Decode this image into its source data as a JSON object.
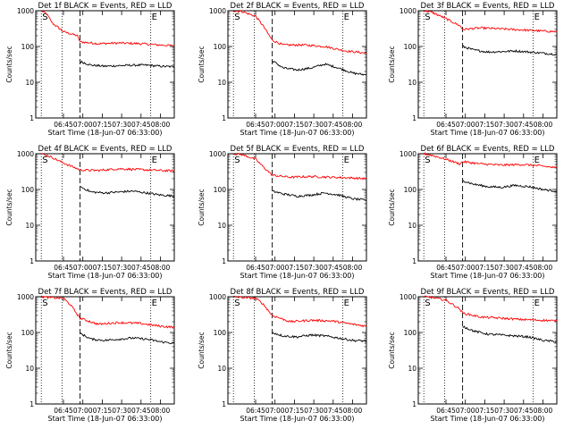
{
  "chart_data": [
    {
      "type": "line",
      "title": "Det 1f BLACK = Events, RED = LLD",
      "xlabel": "Start Time (18-Jun-07 06:33:00)",
      "ylabel": "Counts/sec",
      "yscale": "log",
      "ylim": [
        1,
        1000
      ],
      "x_ticks": [
        "06:45",
        "07:00",
        "07:15",
        "07:30",
        "07:45",
        "08:00"
      ],
      "xlim": [
        0,
        100
      ],
      "markers": [
        {
          "label": "S",
          "x": 4
        },
        {
          "label": "E",
          "x": 83
        }
      ],
      "dotted_x": [
        4,
        19,
        83
      ],
      "dashed_x": [
        32
      ],
      "series": [
        {
          "color": "#ff0000",
          "points": [
            [
              4,
              1000
            ],
            [
              8,
              800
            ],
            [
              12,
              450
            ],
            [
              20,
              260
            ],
            [
              30,
              200
            ],
            [
              32,
              135
            ],
            [
              45,
              120
            ],
            [
              60,
              125
            ],
            [
              75,
              120
            ],
            [
              90,
              110
            ],
            [
              100,
              105
            ]
          ]
        },
        {
          "color": "#000000",
          "points": [
            [
              32,
              38
            ],
            [
              40,
              30
            ],
            [
              50,
              28
            ],
            [
              60,
              29
            ],
            [
              70,
              30
            ],
            [
              80,
              30
            ],
            [
              90,
              28
            ],
            [
              100,
              27
            ]
          ]
        }
      ]
    },
    {
      "type": "line",
      "title": "Det 2f BLACK = Events, RED = LLD",
      "xlabel": "Start Time (18-Jun-07 06:33:00)",
      "ylabel": "Counts/sec",
      "yscale": "log",
      "ylim": [
        1,
        1000
      ],
      "x_ticks": [
        "06:45",
        "07:00",
        "07:15",
        "07:30",
        "07:45",
        "08:00"
      ],
      "xlim": [
        0,
        100
      ],
      "markers": [
        {
          "label": "S",
          "x": 4
        },
        {
          "label": "E",
          "x": 83
        }
      ],
      "dotted_x": [
        4,
        19,
        83
      ],
      "dashed_x": [
        32
      ],
      "series": [
        {
          "color": "#ff0000",
          "points": [
            [
              4,
              1000
            ],
            [
              10,
              950
            ],
            [
              20,
              700
            ],
            [
              25,
              400
            ],
            [
              32,
              150
            ],
            [
              40,
              110
            ],
            [
              55,
              110
            ],
            [
              70,
              100
            ],
            [
              85,
              75
            ],
            [
              100,
              65
            ]
          ]
        },
        {
          "color": "#000000",
          "points": [
            [
              32,
              40
            ],
            [
              40,
              25
            ],
            [
              50,
              22
            ],
            [
              60,
              25
            ],
            [
              70,
              32
            ],
            [
              80,
              25
            ],
            [
              90,
              18
            ],
            [
              100,
              16
            ]
          ]
        }
      ]
    },
    {
      "type": "line",
      "title": "Det 3f BLACK = Events, RED = LLD",
      "xlabel": "Start Time (18-Jun-07 06:33:00)",
      "ylabel": "Counts/sec",
      "yscale": "log",
      "ylim": [
        1,
        1000
      ],
      "x_ticks": [
        "06:45",
        "07:00",
        "07:15",
        "07:30",
        "07:45",
        "08:00"
      ],
      "xlim": [
        0,
        100
      ],
      "markers": [
        {
          "label": "S",
          "x": 4
        },
        {
          "label": "E",
          "x": 83
        }
      ],
      "dotted_x": [
        4,
        19,
        83
      ],
      "dashed_x": [
        32
      ],
      "series": [
        {
          "color": "#ff0000",
          "points": [
            [
              4,
              1000
            ],
            [
              10,
              900
            ],
            [
              20,
              600
            ],
            [
              30,
              380
            ],
            [
              32,
              300
            ],
            [
              45,
              330
            ],
            [
              60,
              310
            ],
            [
              75,
              290
            ],
            [
              90,
              270
            ],
            [
              100,
              260
            ]
          ]
        },
        {
          "color": "#000000",
          "points": [
            [
              32,
              100
            ],
            [
              40,
              80
            ],
            [
              50,
              70
            ],
            [
              60,
              72
            ],
            [
              70,
              75
            ],
            [
              80,
              70
            ],
            [
              90,
              65
            ],
            [
              100,
              60
            ]
          ]
        }
      ]
    },
    {
      "type": "line",
      "title": "Det 4f BLACK = Events, RED = LLD",
      "xlabel": "Start Time (18-Jun-07 06:33:00)",
      "ylabel": "Counts/sec",
      "yscale": "log",
      "ylim": [
        1,
        1000
      ],
      "x_ticks": [
        "06:45",
        "07:00",
        "07:15",
        "07:30",
        "07:45",
        "08:00"
      ],
      "xlim": [
        0,
        100
      ],
      "markers": [
        {
          "label": "S",
          "x": 4
        },
        {
          "label": "E",
          "x": 83
        }
      ],
      "dotted_x": [
        4,
        19,
        83
      ],
      "dashed_x": [
        32
      ],
      "series": [
        {
          "color": "#ff0000",
          "points": [
            [
              4,
              1000
            ],
            [
              10,
              850
            ],
            [
              20,
              550
            ],
            [
              30,
              380
            ],
            [
              32,
              350
            ],
            [
              45,
              340
            ],
            [
              60,
              380
            ],
            [
              75,
              360
            ],
            [
              90,
              340
            ],
            [
              100,
              330
            ]
          ]
        },
        {
          "color": "#000000",
          "points": [
            [
              32,
              120
            ],
            [
              40,
              85
            ],
            [
              50,
              80
            ],
            [
              60,
              85
            ],
            [
              70,
              90
            ],
            [
              80,
              80
            ],
            [
              90,
              70
            ],
            [
              100,
              65
            ]
          ]
        }
      ]
    },
    {
      "type": "line",
      "title": "Det 5f BLACK = Events, RED = LLD",
      "xlabel": "Start Time (18-Jun-07 06:33:00)",
      "ylabel": "Counts/sec",
      "yscale": "log",
      "ylim": [
        1,
        1000
      ],
      "x_ticks": [
        "06:45",
        "07:00",
        "07:15",
        "07:30",
        "07:45",
        "08:00"
      ],
      "xlim": [
        0,
        100
      ],
      "markers": [
        {
          "label": "S",
          "x": 4
        },
        {
          "label": "E",
          "x": 83
        }
      ],
      "dotted_x": [
        4,
        19,
        83
      ],
      "dashed_x": [
        32
      ],
      "series": [
        {
          "color": "#ff0000",
          "points": [
            [
              4,
              1000
            ],
            [
              10,
              950
            ],
            [
              20,
              700
            ],
            [
              25,
              450
            ],
            [
              32,
              250
            ],
            [
              45,
              220
            ],
            [
              60,
              230
            ],
            [
              75,
              220
            ],
            [
              90,
              210
            ],
            [
              100,
              200
            ]
          ]
        },
        {
          "color": "#000000",
          "points": [
            [
              32,
              90
            ],
            [
              40,
              75
            ],
            [
              50,
              65
            ],
            [
              60,
              70
            ],
            [
              70,
              80
            ],
            [
              80,
              70
            ],
            [
              90,
              55
            ],
            [
              100,
              50
            ]
          ]
        }
      ]
    },
    {
      "type": "line",
      "title": "Det 6f BLACK = Events, RED = LLD",
      "xlabel": "Start Time (18-Jun-07 06:33:00)",
      "ylabel": "Counts/sec",
      "yscale": "log",
      "ylim": [
        1,
        1000
      ],
      "x_ticks": [
        "06:45",
        "07:00",
        "07:15",
        "07:30",
        "07:45",
        "08:00"
      ],
      "xlim": [
        0,
        100
      ],
      "markers": [
        {
          "label": "S",
          "x": 4
        },
        {
          "label": "E",
          "x": 83
        }
      ],
      "dotted_x": [
        4,
        19,
        83
      ],
      "dashed_x": [
        32
      ],
      "series": [
        {
          "color": "#ff0000",
          "points": [
            [
              4,
              1000
            ],
            [
              10,
              900
            ],
            [
              20,
              700
            ],
            [
              30,
              520
            ],
            [
              32,
              600
            ],
            [
              45,
              520
            ],
            [
              60,
              480
            ],
            [
              75,
              500
            ],
            [
              90,
              450
            ],
            [
              100,
              400
            ]
          ]
        },
        {
          "color": "#000000",
          "points": [
            [
              32,
              180
            ],
            [
              40,
              140
            ],
            [
              50,
              120
            ],
            [
              60,
              115
            ],
            [
              70,
              130
            ],
            [
              80,
              120
            ],
            [
              90,
              100
            ],
            [
              100,
              90
            ]
          ]
        }
      ]
    },
    {
      "type": "line",
      "title": "Det 7f BLACK = Events, RED = LLD",
      "xlabel": "Start Time (18-Jun-07 06:33:00)",
      "ylabel": "Counts/sec",
      "yscale": "log",
      "ylim": [
        1,
        1000
      ],
      "x_ticks": [
        "06:45",
        "07:00",
        "07:15",
        "07:30",
        "07:45",
        "08:00"
      ],
      "xlim": [
        0,
        100
      ],
      "markers": [
        {
          "label": "S",
          "x": 4
        },
        {
          "label": "E",
          "x": 83
        }
      ],
      "dotted_x": [
        4,
        19,
        83
      ],
      "dashed_x": [
        32
      ],
      "series": [
        {
          "color": "#ff0000",
          "points": [
            [
              4,
              1000
            ],
            [
              10,
              950
            ],
            [
              20,
              900
            ],
            [
              25,
              600
            ],
            [
              32,
              250
            ],
            [
              45,
              170
            ],
            [
              60,
              190
            ],
            [
              75,
              180
            ],
            [
              90,
              150
            ],
            [
              100,
              140
            ]
          ]
        },
        {
          "color": "#000000",
          "points": [
            [
              32,
              95
            ],
            [
              40,
              65
            ],
            [
              50,
              60
            ],
            [
              60,
              65
            ],
            [
              70,
              70
            ],
            [
              80,
              65
            ],
            [
              90,
              55
            ],
            [
              100,
              50
            ]
          ]
        }
      ]
    },
    {
      "type": "line",
      "title": "Det 8f BLACK = Events, RED = LLD",
      "xlabel": "Start Time (18-Jun-07 06:33:00)",
      "ylabel": "Counts/sec",
      "yscale": "log",
      "ylim": [
        1,
        1000
      ],
      "x_ticks": [
        "06:45",
        "07:00",
        "07:15",
        "07:30",
        "07:45",
        "08:00"
      ],
      "xlim": [
        0,
        100
      ],
      "markers": [
        {
          "label": "S",
          "x": 4
        },
        {
          "label": "E",
          "x": 83
        }
      ],
      "dotted_x": [
        4,
        19,
        83
      ],
      "dashed_x": [
        32
      ],
      "series": [
        {
          "color": "#ff0000",
          "points": [
            [
              4,
              1000
            ],
            [
              10,
              950
            ],
            [
              20,
              900
            ],
            [
              25,
              650
            ],
            [
              32,
              300
            ],
            [
              45,
              200
            ],
            [
              60,
              220
            ],
            [
              75,
              210
            ],
            [
              90,
              170
            ],
            [
              100,
              150
            ]
          ]
        },
        {
          "color": "#000000",
          "points": [
            [
              32,
              100
            ],
            [
              40,
              80
            ],
            [
              50,
              75
            ],
            [
              60,
              85
            ],
            [
              70,
              80
            ],
            [
              80,
              70
            ],
            [
              90,
              60
            ],
            [
              100,
              58
            ]
          ]
        }
      ]
    },
    {
      "type": "line",
      "title": "Det 9f BLACK = Events, RED = LLD",
      "xlabel": "Start Time (18-Jun-07 06:33:00)",
      "ylabel": "Counts/sec",
      "yscale": "log",
      "ylim": [
        1,
        1000
      ],
      "x_ticks": [
        "06:45",
        "07:00",
        "07:15",
        "07:30",
        "07:45",
        "08:00"
      ],
      "xlim": [
        0,
        100
      ],
      "markers": [
        {
          "label": "S",
          "x": 4
        },
        {
          "label": "E",
          "x": 83
        }
      ],
      "dotted_x": [
        4,
        19,
        83
      ],
      "dashed_x": [
        32
      ],
      "series": [
        {
          "color": "#ff0000",
          "points": [
            [
              4,
              1000
            ],
            [
              10,
              950
            ],
            [
              20,
              800
            ],
            [
              30,
              450
            ],
            [
              32,
              350
            ],
            [
              45,
              270
            ],
            [
              60,
              250
            ],
            [
              75,
              230
            ],
            [
              90,
              220
            ],
            [
              100,
              210
            ]
          ]
        },
        {
          "color": "#000000",
          "points": [
            [
              32,
              150
            ],
            [
              40,
              110
            ],
            [
              50,
              90
            ],
            [
              60,
              85
            ],
            [
              70,
              80
            ],
            [
              80,
              75
            ],
            [
              90,
              60
            ],
            [
              100,
              55
            ]
          ]
        }
      ]
    }
  ]
}
